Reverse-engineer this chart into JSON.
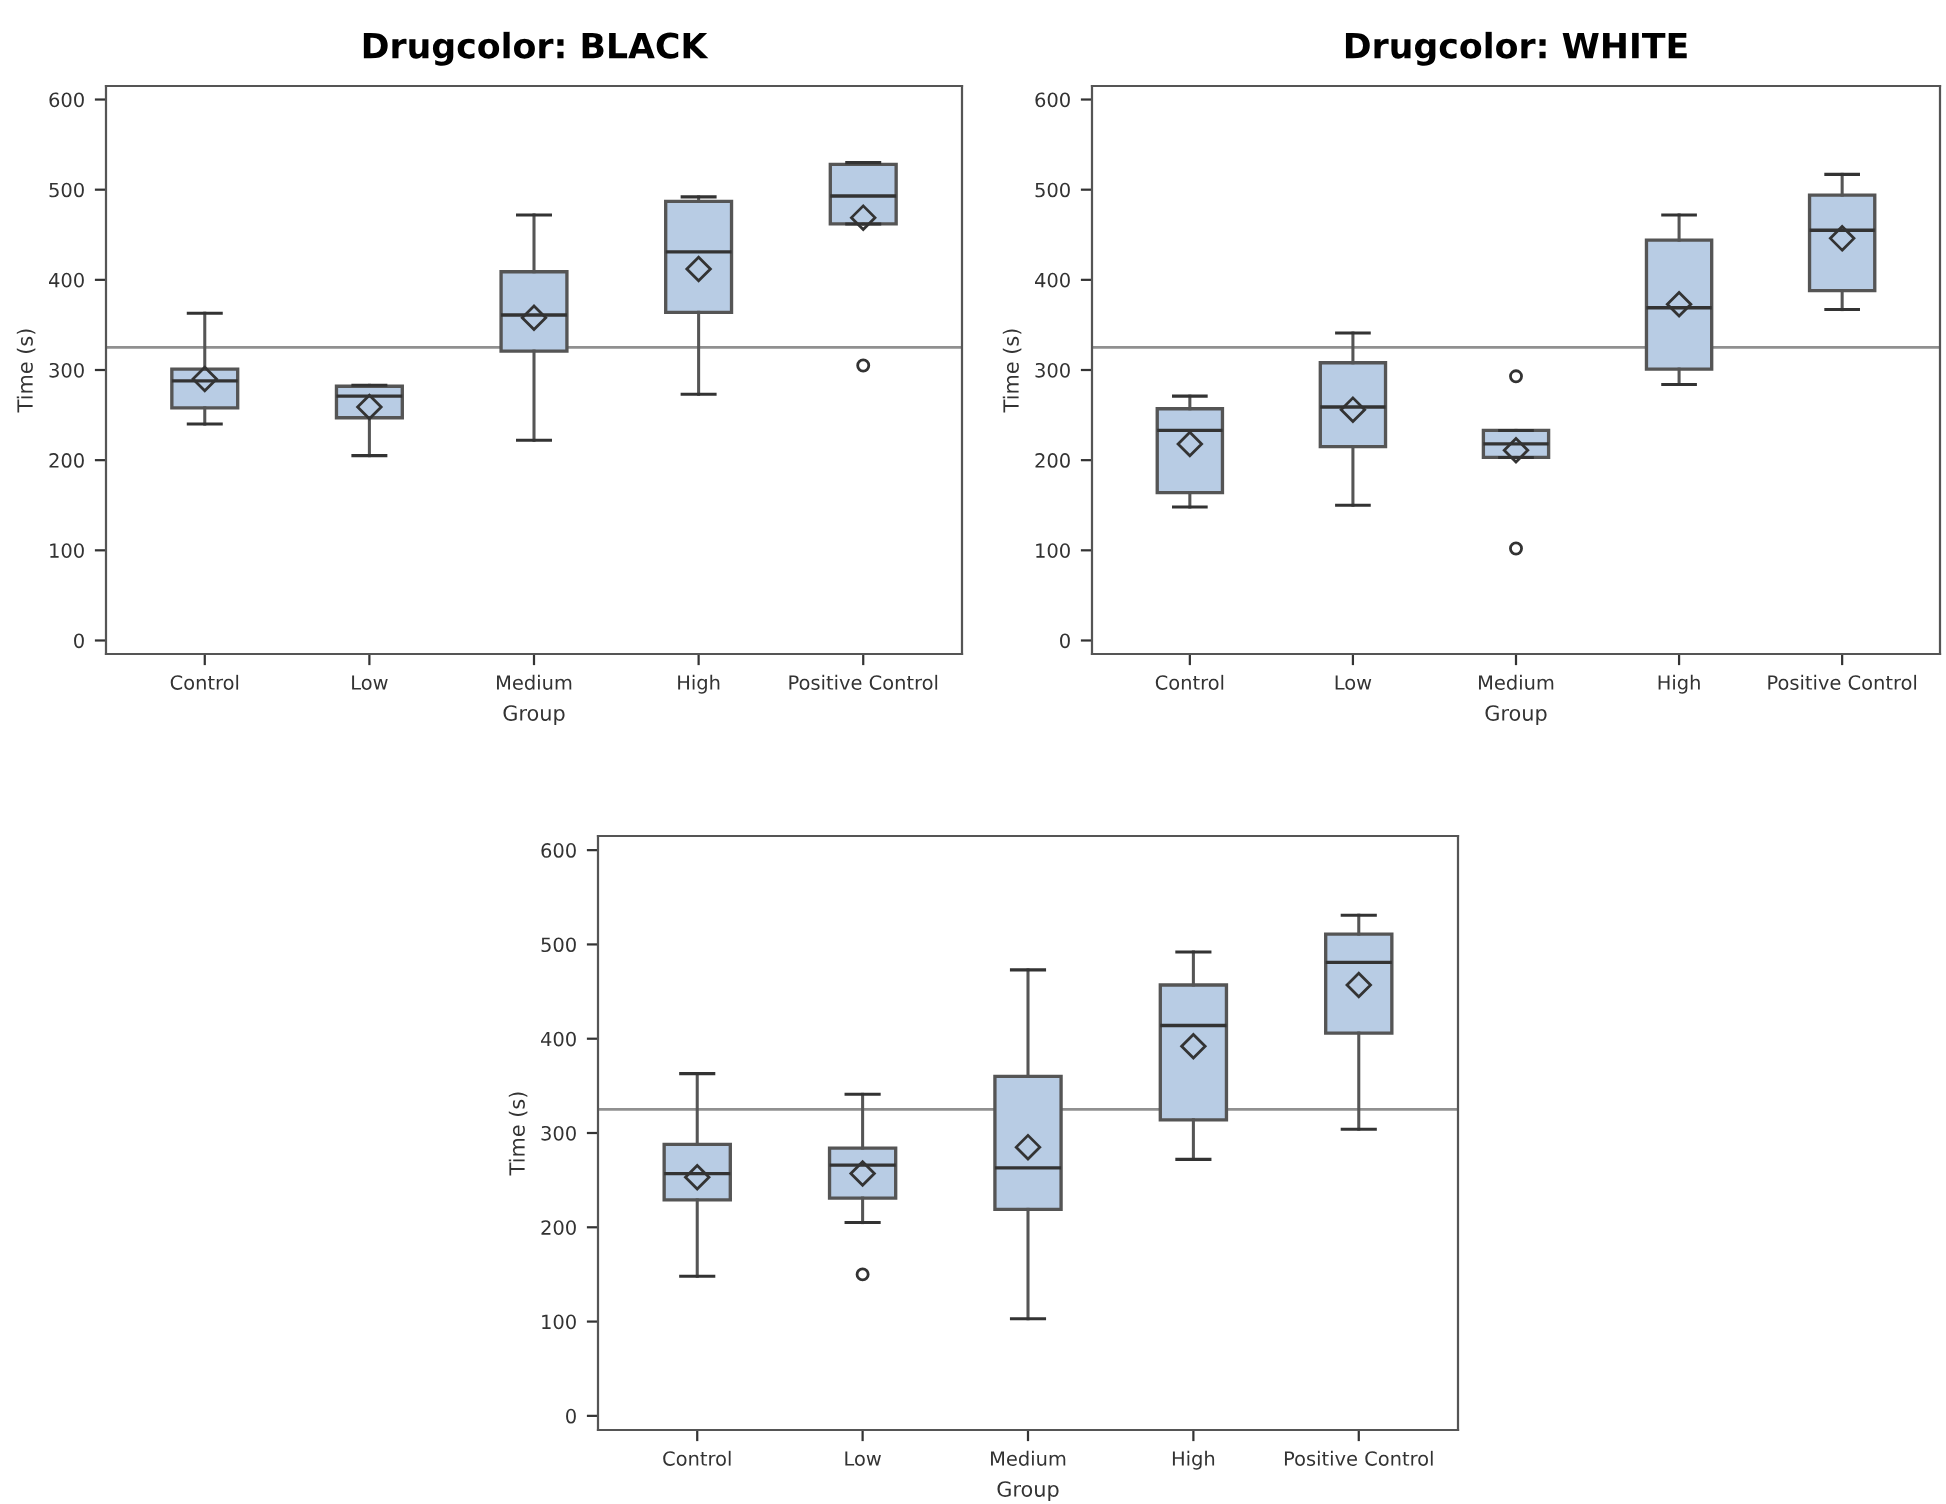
{
  "chart_data": [
    {
      "type": "box",
      "title": "Drugcolor: BLACK",
      "xlabel": "Group",
      "ylabel": "Time (s)",
      "categories": [
        "Control",
        "Low",
        "Medium",
        "High",
        "Positive Control"
      ],
      "ylim": [
        -15,
        615
      ],
      "yticks": [
        0,
        100,
        200,
        300,
        400,
        500,
        600
      ],
      "grid": false,
      "color": "#b8cce4",
      "boxes": [
        {
          "low": 240,
          "q1": 258,
          "median": 288,
          "q3": 301,
          "high": 363,
          "mean": 290
        },
        {
          "low": 205,
          "q1": 247,
          "median": 271,
          "q3": 282,
          "high": 283,
          "mean": 259
        },
        {
          "low": 222,
          "q1": 321,
          "median": 361,
          "q3": 409,
          "high": 472,
          "mean": 358
        },
        {
          "low": 273,
          "q1": 364,
          "median": 431,
          "q3": 487,
          "high": 492,
          "mean": 412
        },
        {
          "low": 462,
          "q1": 462,
          "median": 493,
          "q3": 528,
          "high": 530,
          "mean": 469,
          "outliers": [
            305
          ]
        }
      ],
      "ref_lines": [
        {
          "axis": "y",
          "value": 325,
          "color": "#909090"
        }
      ]
    },
    {
      "type": "box",
      "title": "Drugcolor: WHITE",
      "xlabel": "Group",
      "ylabel": "Time (s)",
      "categories": [
        "Control",
        "Low",
        "Medium",
        "High",
        "Positive Control"
      ],
      "ylim": [
        -15,
        615
      ],
      "yticks": [
        0,
        100,
        200,
        300,
        400,
        500,
        600
      ],
      "grid": false,
      "color": "#b8cce4",
      "boxes": [
        {
          "low": 148,
          "q1": 164,
          "median": 233,
          "q3": 257,
          "high": 271,
          "mean": 218
        },
        {
          "low": 150,
          "q1": 215,
          "median": 259,
          "q3": 308,
          "high": 341,
          "mean": 256
        },
        {
          "low": 203,
          "q1": 203,
          "median": 218,
          "q3": 233,
          "high": 233,
          "mean": 211,
          "outliers": [
            293,
            102
          ]
        },
        {
          "low": 284,
          "q1": 301,
          "median": 369,
          "q3": 444,
          "high": 472,
          "mean": 373
        },
        {
          "low": 367,
          "q1": 388,
          "median": 455,
          "q3": 494,
          "high": 517,
          "mean": 446
        }
      ],
      "ref_lines": [
        {
          "axis": "y",
          "value": 325,
          "color": "#909090"
        }
      ]
    },
    {
      "type": "box",
      "xlabel": "Group",
      "ylabel": "Time (s)",
      "categories": [
        "Control",
        "Low",
        "Medium",
        "High",
        "Positive Control"
      ],
      "ylim": [
        -15,
        615
      ],
      "yticks": [
        0,
        100,
        200,
        300,
        400,
        500,
        600
      ],
      "grid": false,
      "color": "#b8cce4",
      "boxes": [
        {
          "low": 148,
          "q1": 229,
          "median": 257,
          "q3": 288,
          "high": 363,
          "mean": 253
        },
        {
          "low": 205,
          "q1": 231,
          "median": 266,
          "q3": 284,
          "high": 341,
          "mean": 257,
          "outliers": [
            150
          ]
        },
        {
          "low": 103,
          "q1": 219,
          "median": 263,
          "q3": 360,
          "high": 473,
          "mean": 285
        },
        {
          "low": 272,
          "q1": 314,
          "median": 414,
          "q3": 457,
          "high": 492,
          "mean": 392
        },
        {
          "low": 304,
          "q1": 406,
          "median": 481,
          "q3": 511,
          "high": 531,
          "mean": 457
        }
      ],
      "ref_lines": [
        {
          "axis": "y",
          "value": 325,
          "color": "#909090"
        }
      ]
    }
  ]
}
